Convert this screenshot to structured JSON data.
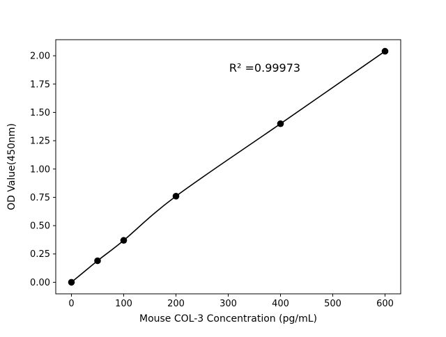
{
  "figure": {
    "background": "#ffffff"
  },
  "chart_data": {
    "type": "scatter",
    "x": [
      0,
      50,
      100,
      200,
      400,
      600
    ],
    "y": [
      0.0,
      0.19,
      0.37,
      0.76,
      1.4,
      2.04
    ],
    "fit_line": true,
    "title": "",
    "xlabel": "Mouse COL-3 Concentration (pg/mL)",
    "ylabel": "OD Value(450nm)",
    "xlim": [
      -30,
      630
    ],
    "ylim": [
      -0.102,
      2.142
    ],
    "xticks": {
      "values": [
        0,
        100,
        200,
        300,
        400,
        500,
        600
      ],
      "labels": [
        "0",
        "100",
        "200",
        "300",
        "400",
        "500",
        "600"
      ]
    },
    "yticks": {
      "values": [
        0.0,
        0.25,
        0.5,
        0.75,
        1.0,
        1.25,
        1.5,
        1.75,
        2.0
      ],
      "labels": [
        "0.00",
        "0.25",
        "0.50",
        "0.75",
        "1.00",
        "1.25",
        "1.50",
        "1.75",
        "2.00"
      ]
    },
    "annotation": {
      "text": "R² =0.99973",
      "x": 370,
      "y": 1.86
    },
    "marker_color": "#000000",
    "line_color": "#000000",
    "grid": false,
    "legend": null
  }
}
